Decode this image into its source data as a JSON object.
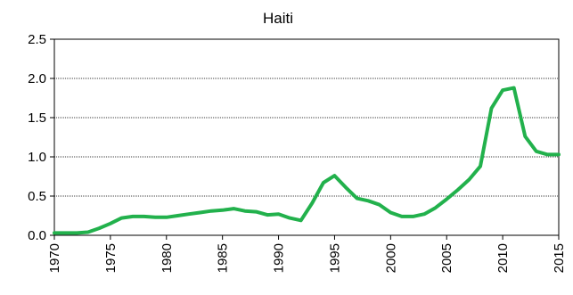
{
  "chart_data": {
    "type": "line",
    "title": "Haiti",
    "xlabel": "",
    "ylabel": "",
    "xlim": [
      1970,
      2015
    ],
    "ylim": [
      0,
      2.5
    ],
    "grid": true,
    "legend": "none",
    "yticks": [
      "0.0",
      "0.5",
      "1.0",
      "1.5",
      "2.0",
      "2.5"
    ],
    "xticks": [
      "1970",
      "1975",
      "1980",
      "1985",
      "1990",
      "1995",
      "2000",
      "2005",
      "2010",
      "2015"
    ],
    "x": [
      1970,
      1971,
      1972,
      1973,
      1974,
      1975,
      1976,
      1977,
      1978,
      1979,
      1980,
      1981,
      1982,
      1983,
      1984,
      1985,
      1986,
      1987,
      1988,
      1989,
      1990,
      1991,
      1992,
      1993,
      1994,
      1995,
      1996,
      1997,
      1998,
      1999,
      2000,
      2001,
      2002,
      2003,
      2004,
      2005,
      2006,
      2007,
      2008,
      2009,
      2010,
      2011,
      2012,
      2013,
      2014,
      2015
    ],
    "series": [
      {
        "color": "#22b14c",
        "values": [
          0.03,
          0.03,
          0.03,
          0.04,
          0.09,
          0.15,
          0.22,
          0.24,
          0.24,
          0.23,
          0.23,
          0.25,
          0.27,
          0.29,
          0.31,
          0.32,
          0.34,
          0.31,
          0.3,
          0.26,
          0.27,
          0.22,
          0.19,
          0.41,
          0.67,
          0.76,
          0.61,
          0.47,
          0.44,
          0.39,
          0.29,
          0.24,
          0.24,
          0.27,
          0.35,
          0.46,
          0.58,
          0.71,
          0.88,
          1.62,
          1.85,
          1.88,
          1.26,
          1.07,
          1.03,
          1.03
        ]
      }
    ]
  }
}
